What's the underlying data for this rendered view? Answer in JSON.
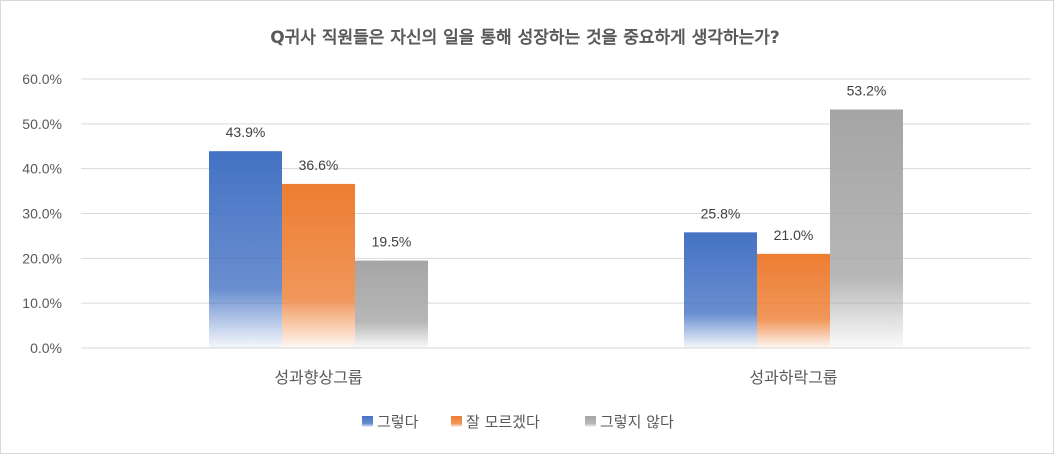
{
  "chart_data": {
    "type": "bar",
    "title": "Q귀사 직원들은 자신의 일을 통해  성장하는 것을 중요하게 생각하는가?",
    "categories": [
      "성과향상그룹",
      "성과하락그룹"
    ],
    "series": [
      {
        "name": "그렇다",
        "values": [
          43.9,
          25.8
        ],
        "color": "#4472c4"
      },
      {
        "name": "잘 모르겠다",
        "values": [
          36.6,
          21.0
        ],
        "color": "#ed7d31"
      },
      {
        "name": "그렇지 않다",
        "values": [
          19.5,
          53.2
        ],
        "color": "#a5a5a5"
      }
    ],
    "data_labels": [
      [
        "43.9%",
        "25.8%"
      ],
      [
        "36.6%",
        "21.0%"
      ],
      [
        "19.5%",
        "53.2%"
      ]
    ],
    "y_ticks": [
      "0.0%",
      "10.0%",
      "20.0%",
      "30.0%",
      "40.0%",
      "50.0%",
      "60.0%"
    ],
    "ylim": [
      0,
      60
    ],
    "grid": true,
    "legend_position": "bottom"
  }
}
